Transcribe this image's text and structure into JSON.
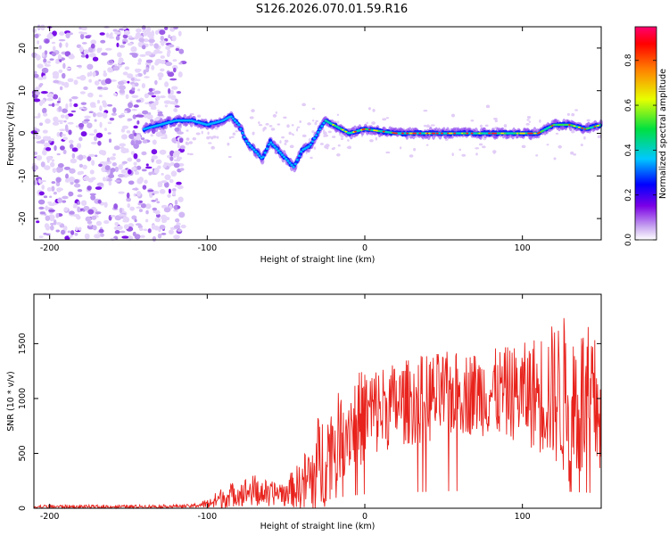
{
  "title": "S126.2026.070.01.59.R16",
  "chart_data": [
    {
      "type": "heatmap",
      "xlabel": "Height of straight line (km)",
      "ylabel": "Frequency (Hz)",
      "xlim": [
        -210,
        150
      ],
      "ylim": [
        -25,
        25
      ],
      "xticks": [
        -200,
        -100,
        0,
        100
      ],
      "yticks": [
        -20,
        -10,
        0,
        10,
        20
      ],
      "colorbar": {
        "label": "Normalized spectral amplitude",
        "range": [
          0,
          0.95
        ],
        "ticks": [
          0.0,
          0.2,
          0.4,
          0.6,
          0.8
        ],
        "tick_labels": [
          "0.0",
          "0.2",
          "0.4",
          "0.6",
          "0.8"
        ]
      },
      "signal_track": {
        "x": [
          -140,
          -130,
          -120,
          -110,
          -100,
          -90,
          -85,
          -80,
          -75,
          -70,
          -65,
          -60,
          -55,
          -50,
          -45,
          -40,
          -35,
          -30,
          -25,
          -20,
          -10,
          0,
          20,
          40,
          60,
          80,
          100,
          110,
          120,
          130,
          140,
          150
        ],
        "freq": [
          1,
          2,
          3,
          3,
          2,
          3,
          4,
          2,
          -2,
          -4,
          -6,
          -2,
          -4,
          -6,
          -8,
          -4,
          -3,
          0,
          3,
          2,
          0,
          1,
          0,
          0,
          0,
          0,
          0,
          0,
          2,
          2,
          1,
          2
        ]
      },
      "noise_region_x": [
        -210,
        -115
      ]
    },
    {
      "type": "line",
      "xlabel": "Height of straight line (km)",
      "ylabel": "SNR (10 * v/v)",
      "xlim": [
        -210,
        150
      ],
      "ylim": [
        0,
        1950
      ],
      "xticks": [
        -200,
        -100,
        0,
        100
      ],
      "yticks": [
        0,
        500,
        1000,
        1500
      ],
      "color": "#e8221c",
      "series_envelope": {
        "x": [
          -210,
          -150,
          -110,
          -100,
          -90,
          -80,
          -70,
          -60,
          -50,
          -40,
          -30,
          -20,
          -10,
          0,
          20,
          40,
          60,
          80,
          100,
          120,
          130,
          140,
          150
        ],
        "mean": [
          15,
          15,
          20,
          40,
          100,
          140,
          160,
          130,
          160,
          200,
          350,
          600,
          750,
          850,
          950,
          1000,
          1050,
          1050,
          1050,
          1050,
          1000,
          950,
          900
        ],
        "amp": [
          15,
          15,
          15,
          40,
          100,
          120,
          150,
          110,
          110,
          250,
          500,
          400,
          420,
          450,
          380,
          420,
          380,
          400,
          450,
          650,
          800,
          750,
          600
        ]
      }
    }
  ]
}
